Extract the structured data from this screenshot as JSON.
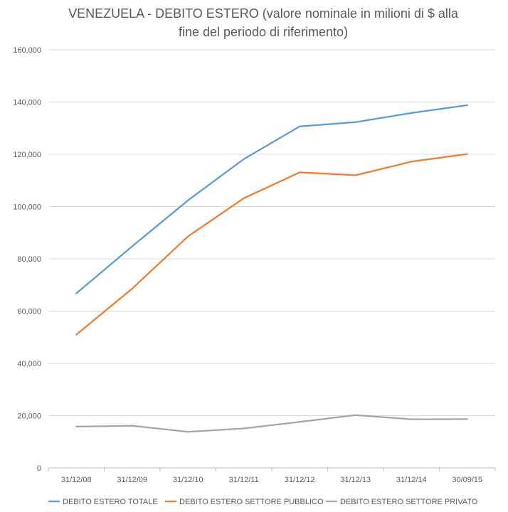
{
  "chart_data": {
    "type": "line",
    "title": "VENEZUELA - DEBITO ESTERO (valore nominale in milioni di $ alla fine del periodo di riferimento)",
    "title_lines": [
      "VENEZUELA - DEBITO ESTERO (valore nominale in milioni di $ alla",
      "fine del periodo di riferimento)"
    ],
    "categories": [
      "31/12/08",
      "31/12/09",
      "31/12/10",
      "31/12/11",
      "31/12/12",
      "31/12/13",
      "31/12/14",
      "30/09/15"
    ],
    "ylim": [
      0,
      160000
    ],
    "yticks": [
      0,
      20000,
      40000,
      60000,
      80000,
      100000,
      120000,
      140000,
      160000
    ],
    "ytick_labels": [
      "0",
      "20,000",
      "40,000",
      "60,000",
      "80,000",
      "100,000",
      "120,000",
      "140,000",
      "160,000"
    ],
    "grid": true,
    "legend_position": "bottom",
    "series": [
      {
        "name": "DEBITO ESTERO TOTALE",
        "color": "#5b9bd5",
        "values": [
          66800,
          84800,
          102400,
          118200,
          130700,
          132300,
          135800,
          138800
        ]
      },
      {
        "name": "DEBITO ESTERO SETTORE PUBBLICO",
        "color": "#ed7d31",
        "values": [
          51000,
          68600,
          88600,
          103200,
          113100,
          112000,
          117200,
          120100
        ]
      },
      {
        "name": "DEBITO ESTERO SETTORE PRIVATO",
        "color": "#a5a5a5",
        "values": [
          15800,
          16100,
          13800,
          15100,
          17600,
          20200,
          18600,
          18700
        ]
      }
    ]
  }
}
